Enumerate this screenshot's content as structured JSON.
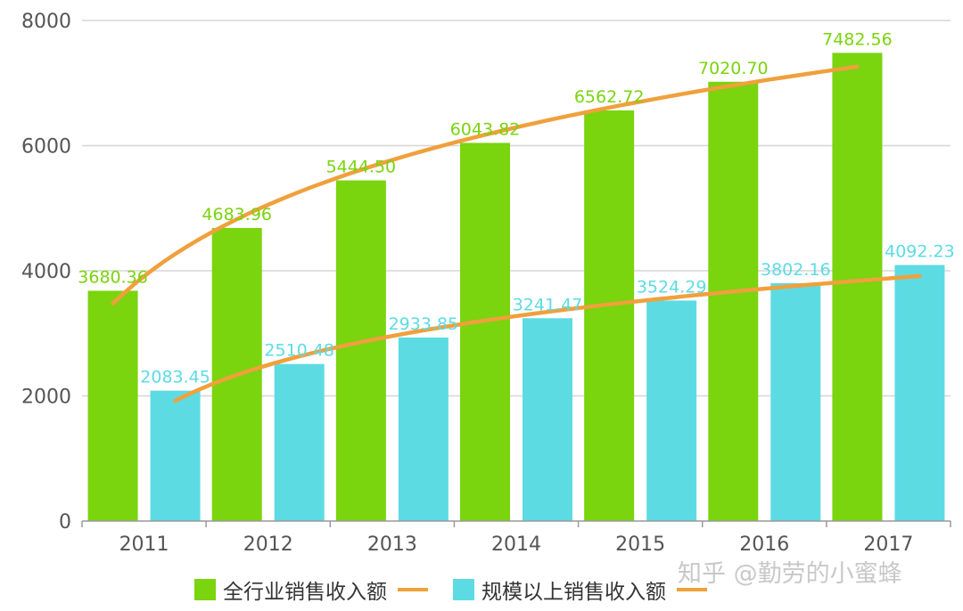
{
  "chart_data": {
    "type": "bar",
    "categories": [
      "2011",
      "2012",
      "2013",
      "2014",
      "2015",
      "2016",
      "2017"
    ],
    "series": [
      {
        "name": "全行业销售收入额",
        "values": [
          3680.36,
          4683.96,
          5444.5,
          6043.82,
          6562.72,
          7020.7,
          7482.56
        ],
        "labels": [
          "3680.36",
          "4683.96",
          "5444.50",
          "6043.82",
          "6562.72",
          "7020.70",
          "7482.56"
        ],
        "color": "#7ad40e"
      },
      {
        "name": "规模以上销售收入额",
        "values": [
          2083.45,
          2510.48,
          2933.85,
          3241.47,
          3524.29,
          3802.16,
          4092.23
        ],
        "labels": [
          "2083.45",
          "2510.48",
          "2933.85",
          "3241.47",
          "3524.29",
          "3802.16",
          "4092.23"
        ],
        "color": "#5ddbe3"
      }
    ],
    "trendlines": {
      "color": "#f0a03c",
      "type": "logarithmic"
    },
    "yticks": [
      "0",
      "2000",
      "4000",
      "6000",
      "8000"
    ],
    "ylim": [
      0,
      8000
    ],
    "grid": true,
    "legend_position": "bottom",
    "label_colors": {
      "series0": "#7ad40e",
      "series1": "#5ddbe3"
    }
  },
  "watermark": "知乎 @勤劳的小蜜蜂"
}
